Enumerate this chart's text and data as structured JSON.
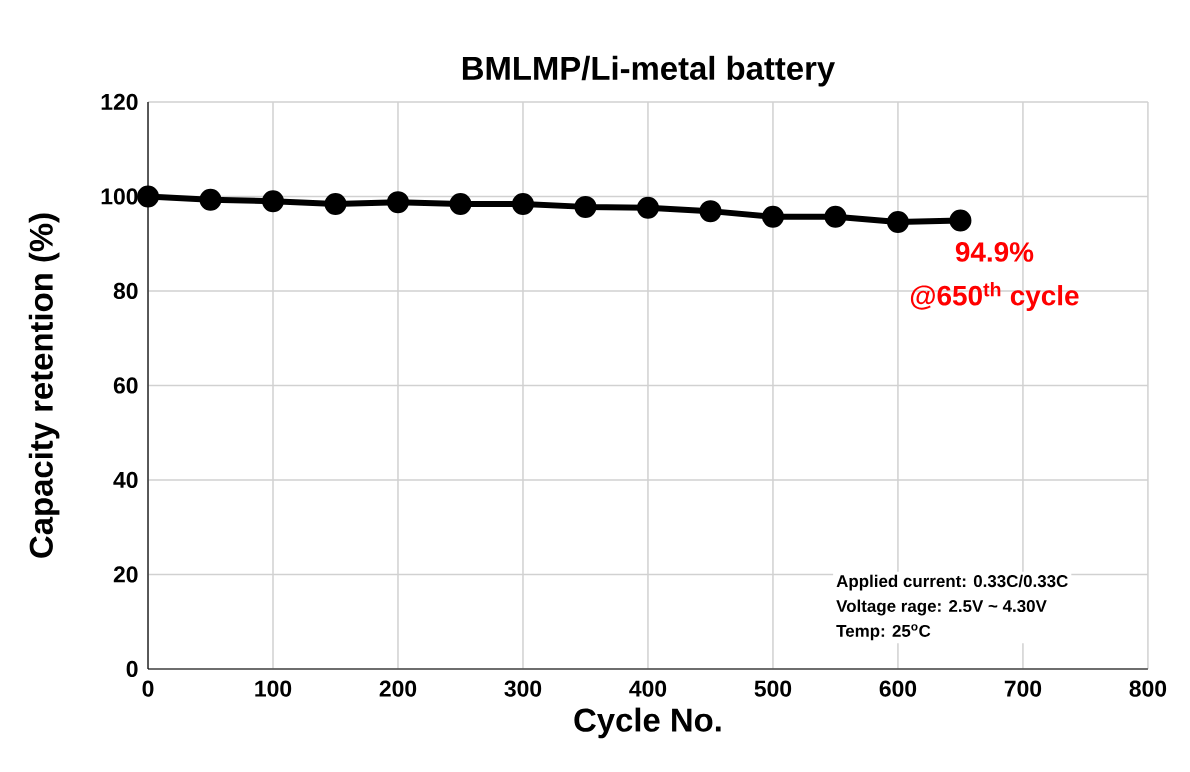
{
  "chart_data": {
    "type": "line",
    "title": "BMLMP/Li-metal battery",
    "xlabel": "Cycle No.",
    "ylabel": "Capacity retention (%)",
    "x": [
      0,
      50,
      100,
      150,
      200,
      250,
      300,
      350,
      400,
      450,
      500,
      550,
      600,
      650
    ],
    "series": [
      {
        "color": "#000000",
        "values": [
          100,
          99.3,
          99.0,
          98.4,
          98.8,
          98.4,
          98.4,
          97.8,
          97.6,
          96.9,
          95.7,
          95.7,
          94.6,
          94.9
        ]
      }
    ],
    "xlim": [
      0,
      800
    ],
    "xticks": [
      0,
      100,
      200,
      300,
      400,
      500,
      600,
      700,
      800
    ],
    "ylim": [
      0,
      120
    ],
    "yticks": [
      0,
      20,
      40,
      60,
      80,
      100,
      120
    ],
    "grid": true,
    "marker": "circle",
    "line_style": "solid",
    "annotations": [
      {
        "text": "94.9%",
        "x": 650,
        "y": 94.9
      },
      {
        "text": "@650$^{th}$ cycle",
        "x": 650,
        "y": 94.9
      },
      "Applied current: 0.33C/0.33C",
      "Voltage rage: 2.5V ~ 4.30V",
      "Temp: 25$^{o}$C"
    ]
  }
}
